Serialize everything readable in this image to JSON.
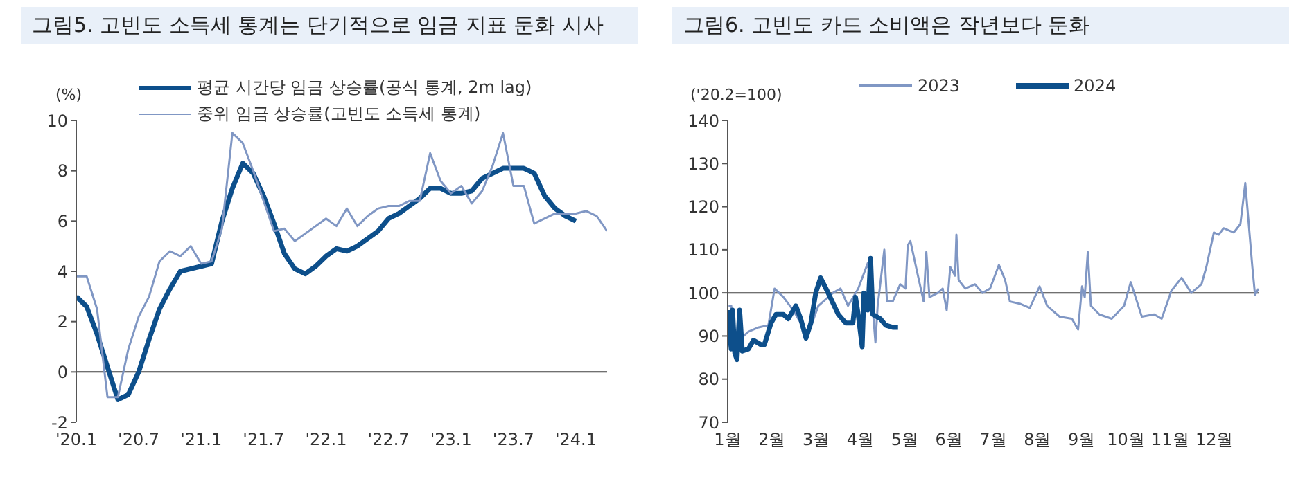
{
  "chart_data": [
    {
      "type": "line",
      "title": "그림5. 고빈도 소득세 통계는 단기적으로 임금 지표 둔화 시사",
      "ylabel": "(%)",
      "legend": "top",
      "grid": false,
      "categories": [
        "'20.1",
        null,
        null,
        null,
        null,
        null,
        "'20.7",
        null,
        null,
        null,
        null,
        null,
        "'21.1",
        null,
        null,
        null,
        null,
        null,
        "'21.7",
        null,
        null,
        null,
        null,
        null,
        "'22.1",
        null,
        null,
        null,
        null,
        null,
        "'22.7",
        null,
        null,
        null,
        null,
        null,
        "'23.1",
        null,
        null,
        null,
        null,
        null,
        "'23.7",
        null,
        null,
        null,
        null,
        null,
        "'24.1",
        null,
        null,
        null
      ],
      "ylim": [
        -2,
        10
      ],
      "yticks": [
        -2,
        0,
        2,
        4,
        6,
        8,
        10
      ],
      "ref_lines": [
        {
          "axis": "y",
          "value": 0,
          "color": "#404040"
        }
      ],
      "series": [
        {
          "name": "평균 시간당 임금 상승률(공식 통계, 2m lag)",
          "color": "#0d4f8b",
          "values": [
            3.0,
            2.6,
            1.5,
            0.2,
            -1.1,
            -0.9,
            0.0,
            1.3,
            2.5,
            3.3,
            4.0,
            4.1,
            4.2,
            4.3,
            6.0,
            7.3,
            8.3,
            7.9,
            7.0,
            5.9,
            4.7,
            4.1,
            3.9,
            4.2,
            4.6,
            4.9,
            4.8,
            5.0,
            5.3,
            5.6,
            6.1,
            6.3,
            6.6,
            6.9,
            7.3,
            7.3,
            7.1,
            7.1,
            7.2,
            7.7,
            7.9,
            8.1,
            8.1,
            8.1,
            7.9,
            7.0,
            6.5,
            6.2,
            6.0,
            null,
            null,
            null
          ]
        },
        {
          "name": "중위 임금 상승률(고빈도 소득세 통계)",
          "color": "#8097c4",
          "values": [
            3.8,
            3.8,
            2.5,
            -1.0,
            -1.0,
            0.9,
            2.2,
            3.0,
            4.4,
            4.8,
            4.6,
            5.0,
            4.3,
            4.4,
            5.7,
            9.5,
            9.1,
            8.0,
            6.8,
            5.6,
            5.7,
            5.2,
            5.5,
            5.8,
            6.1,
            5.8,
            6.5,
            5.8,
            6.2,
            6.5,
            6.6,
            6.6,
            6.8,
            6.8,
            8.7,
            7.6,
            7.1,
            7.4,
            6.7,
            7.2,
            8.2,
            9.5,
            7.4,
            7.4,
            5.9,
            6.1,
            6.3,
            6.3,
            6.3,
            6.4,
            6.2,
            5.6
          ]
        }
      ]
    },
    {
      "type": "line",
      "title": "그림6. 고빈도 카드 소비액은 작년보다 둔화",
      "ylabel": "('20.2=100)",
      "legend": "top",
      "grid": false,
      "xlim": [
        1,
        13
      ],
      "xticks": [
        {
          "value": 1,
          "label": "1월"
        },
        {
          "value": 2,
          "label": "2월"
        },
        {
          "value": 3,
          "label": "3월"
        },
        {
          "value": 4,
          "label": "4월"
        },
        {
          "value": 5,
          "label": "5월"
        },
        {
          "value": 6,
          "label": "6월"
        },
        {
          "value": 7,
          "label": "7월"
        },
        {
          "value": 8,
          "label": "8월"
        },
        {
          "value": 9,
          "label": "9월"
        },
        {
          "value": 10,
          "label": "10월"
        },
        {
          "value": 11,
          "label": "11월"
        },
        {
          "value": 12,
          "label": "12월"
        }
      ],
      "ylim": [
        70,
        140
      ],
      "yticks": [
        70,
        80,
        90,
        100,
        110,
        120,
        130,
        140
      ],
      "ref_lines": [
        {
          "axis": "y",
          "value": 100,
          "color": "#404040"
        }
      ],
      "series": [
        {
          "name": "2023",
          "color": "#8097c4",
          "x": [
            1.02,
            1.08,
            1.13,
            1.25,
            1.47,
            1.7,
            1.92,
            2.06,
            2.26,
            2.48,
            2.71,
            2.82,
            3.05,
            3.38,
            3.55,
            3.72,
            3.95,
            4.17,
            4.28,
            4.34,
            4.39,
            4.54,
            4.6,
            4.73,
            4.9,
            5.02,
            5.07,
            5.13,
            5.3,
            5.43,
            5.49,
            5.56,
            5.75,
            5.86,
            5.95,
            6.03,
            6.14,
            6.17,
            6.22,
            6.37,
            6.59,
            6.76,
            6.93,
            7.13,
            7.27,
            7.38,
            7.6,
            7.83,
            8.05,
            8.22,
            8.5,
            8.78,
            8.92,
            9.01,
            9.07,
            9.14,
            9.21,
            9.4,
            9.68,
            9.96,
            10.11,
            10.36,
            10.64,
            10.81,
            11.03,
            11.26,
            11.48,
            11.71,
            11.82,
            11.99,
            12.1,
            12.21,
            12.44,
            12.59,
            12.7,
            12.86,
            12.92,
            13
          ],
          "values": [
            97,
            97,
            88,
            89,
            91,
            92,
            92.5,
            101,
            99,
            96,
            92,
            90.5,
            97,
            100,
            101,
            97,
            101,
            107,
            96,
            88.5,
            97,
            110,
            98,
            98,
            102,
            101,
            111,
            112,
            104,
            98,
            109.5,
            99,
            100,
            101,
            96,
            106,
            104,
            113.5,
            103,
            101,
            102,
            100,
            101,
            106.5,
            103,
            98,
            97.5,
            96.5,
            101.5,
            97,
            94.5,
            94,
            91.5,
            101.5,
            99,
            109.5,
            97,
            95,
            94,
            97,
            102.5,
            94.5,
            95,
            94,
            100.5,
            103.5,
            100,
            102,
            106,
            114,
            113.5,
            115,
            114,
            116,
            125.5,
            106,
            99.5,
            101
          ]
        },
        {
          "name": "2024",
          "color": "#0d4f8b",
          "x": [
            1.02,
            1.05,
            1.08,
            1.11,
            1.16,
            1.21,
            1.27,
            1.33,
            1.47,
            1.58,
            1.75,
            1.83,
            1.98,
            2.09,
            2.26,
            2.37,
            2.54,
            2.65,
            2.77,
            2.88,
            2.99,
            3.1,
            3.27,
            3.5,
            3.67,
            3.83,
            3.89,
            3.95,
            4.04,
            4.08,
            4.17,
            4.23,
            4.28,
            4.45,
            4.57,
            4.73,
            4.85
          ],
          "values": [
            96,
            90,
            87,
            96,
            86,
            84.5,
            96,
            86.5,
            87,
            89,
            88,
            88,
            93,
            95,
            95,
            94,
            97,
            94,
            89.5,
            93,
            100,
            103.5,
            100,
            95,
            93,
            93,
            99,
            95,
            87.5,
            100,
            96,
            108,
            95,
            94,
            92.5,
            92,
            92
          ]
        }
      ]
    }
  ]
}
